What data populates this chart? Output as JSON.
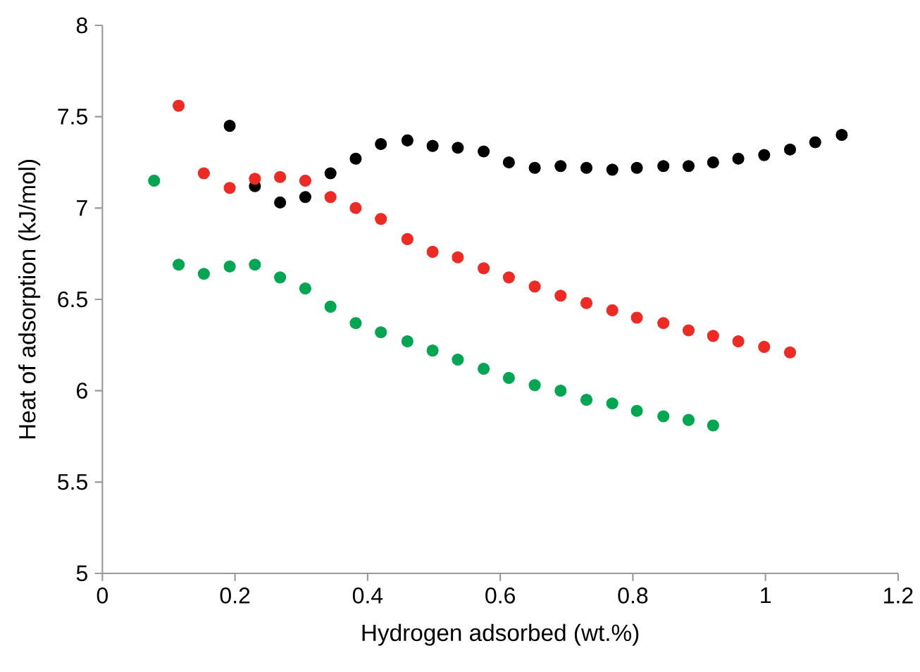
{
  "chart_data": {
    "type": "scatter",
    "xlabel": "Hydrogen adsorbed (wt.%)",
    "ylabel": "Heat of adsorption (kJ/mol)",
    "xlim": [
      0,
      1.2
    ],
    "ylim": [
      5,
      8
    ],
    "xticks": [
      0,
      0.2,
      0.4,
      0.6,
      0.8,
      1,
      1.2
    ],
    "yticks": [
      5,
      5.5,
      6,
      6.5,
      7,
      7.5,
      8
    ],
    "grid": false,
    "series": [
      {
        "color": "#000000",
        "x": [
          0.192,
          0.23,
          0.268,
          0.306,
          0.344,
          0.382,
          0.42,
          0.46,
          0.498,
          0.536,
          0.575,
          0.613,
          0.652,
          0.691,
          0.73,
          0.769,
          0.806,
          0.846,
          0.884,
          0.921,
          0.959,
          0.998,
          1.037,
          1.075,
          1.115
        ],
        "values": [
          7.45,
          7.12,
          7.03,
          7.06,
          7.19,
          7.27,
          7.35,
          7.37,
          7.34,
          7.33,
          7.31,
          7.25,
          7.22,
          7.23,
          7.22,
          7.21,
          7.22,
          7.23,
          7.23,
          7.25,
          7.27,
          7.29,
          7.32,
          7.36,
          7.4
        ]
      },
      {
        "color": "#ee2a24",
        "x": [
          0.115,
          0.153,
          0.192,
          0.23,
          0.268,
          0.306,
          0.344,
          0.382,
          0.42,
          0.46,
          0.498,
          0.536,
          0.575,
          0.613,
          0.652,
          0.691,
          0.73,
          0.769,
          0.806,
          0.846,
          0.884,
          0.921,
          0.959,
          0.998,
          1.037
        ],
        "values": [
          7.56,
          7.19,
          7.11,
          7.16,
          7.17,
          7.15,
          7.06,
          7.0,
          6.94,
          6.83,
          6.76,
          6.73,
          6.67,
          6.62,
          6.57,
          6.52,
          6.48,
          6.44,
          6.4,
          6.37,
          6.33,
          6.3,
          6.27,
          6.24,
          6.21
        ]
      },
      {
        "color": "#00a651",
        "x": [
          0.078,
          0.115,
          0.153,
          0.192,
          0.23,
          0.268,
          0.306,
          0.344,
          0.382,
          0.42,
          0.46,
          0.498,
          0.536,
          0.575,
          0.613,
          0.652,
          0.691,
          0.73,
          0.769,
          0.806,
          0.846,
          0.884,
          0.921
        ],
        "values": [
          7.15,
          6.69,
          6.64,
          6.68,
          6.69,
          6.62,
          6.56,
          6.46,
          6.37,
          6.32,
          6.27,
          6.22,
          6.17,
          6.12,
          6.07,
          6.03,
          6.0,
          5.95,
          5.93,
          5.89,
          5.86,
          5.84,
          5.81
        ]
      }
    ]
  }
}
